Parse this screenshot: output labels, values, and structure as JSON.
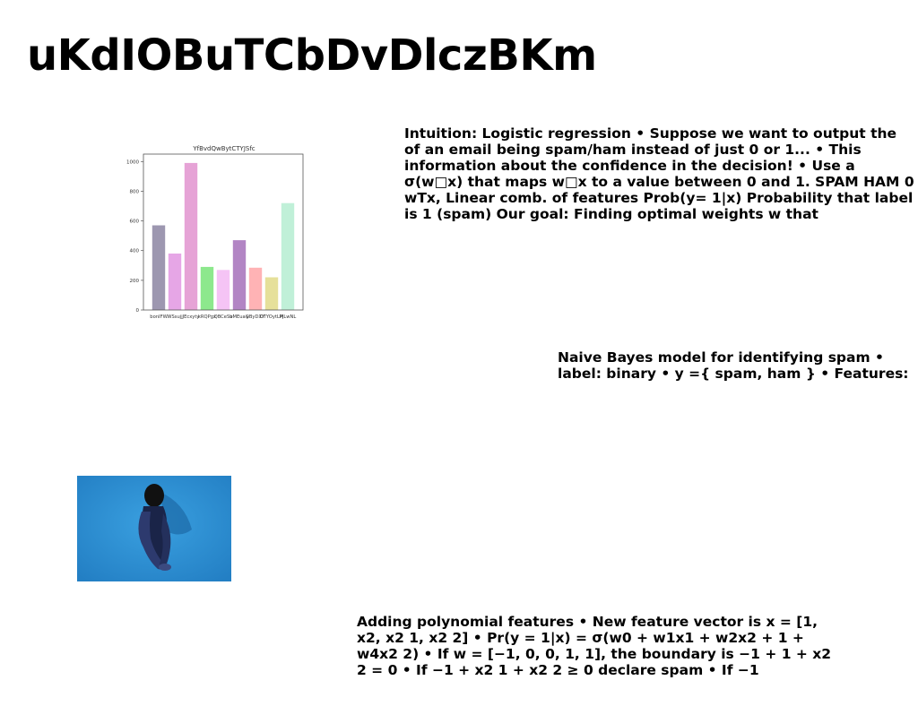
{
  "title": "uKdIOBuTCbDvDlczBKm",
  "chart_data": {
    "type": "bar",
    "title": "YfBvdQwBytCTYJSfc",
    "categories": [
      "bonIFW",
      "WSsujj",
      "JEcxyty",
      "kRQPgx",
      "QBCeSv",
      "bMEuaG",
      "yByDXY",
      "DTYOytLM",
      "PjLwNL"
    ],
    "values": [
      570,
      380,
      990,
      290,
      270,
      470,
      285,
      220,
      720
    ],
    "colors": [
      "#9d97b0",
      "#e6a6e6",
      "#e6a3d6",
      "#8de88d",
      "#f5c4f5",
      "#b285c4",
      "#ffb3b5",
      "#e6e09a",
      "#c0f0d8"
    ],
    "ylim": [
      0,
      1050
    ],
    "yticks": [
      0,
      200,
      400,
      600,
      800,
      1000
    ],
    "grid": false
  },
  "blocks": {
    "logistic": "Intuition: Logistic regression • Suppose we want to output the of an email being spam/ham instead of just 0 or 1... • This information about the confidence in the decision! • Use a σ(w□x) that maps w□x to a value between 0 and 1. SPAM HAM 0 wTx, Linear comb. of features Prob(y= 1|x) Probability that label is 1 (spam) Our goal: Finding optimal weights w that",
    "naive_bayes": "Naive Bayes model for identifying spam • label: binary • y ={ spam, ham } • Features:",
    "polynomial": "Adding polynomial features • New feature vector is x = [1, x2, x2 1, x2 2] • Pr(y = 1|x) = σ(w0 + w1x1 + w2x2 + 1 + w4x2 2) • If w = [−1, 0, 0, 1, 1], the boundary is −1 + 1 + x2 2 = 0 • If −1 + x2 1 + x2 2 ≥ 0 declare spam • If −1"
  }
}
